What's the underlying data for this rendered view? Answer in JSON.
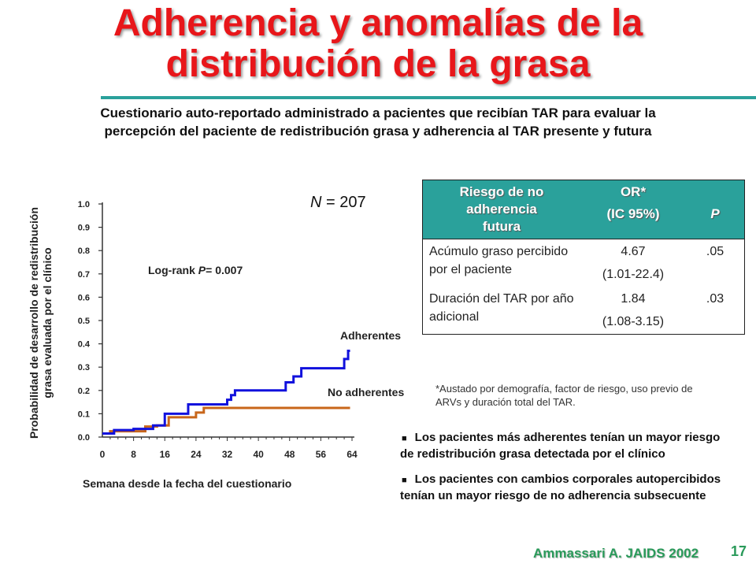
{
  "slide": {
    "title_line1": "Adherencia y anomalías de la",
    "title_line2": "distribución de la grasa",
    "subtitle": "Cuestionario auto-reportado administrado a pacientes que recibían TAR para evaluar la percepción del paciente de redistribución grasa y adherencia al TAR presente y futura",
    "n_label": "N",
    "n_value": "= 207",
    "citation": "Ammassari A. JAIDS 2002",
    "page_number": "17",
    "title_color": "#e8161a",
    "accent_color": "#2aa19b"
  },
  "chart_data": {
    "type": "line",
    "title": "",
    "xlabel": "Semana desde la fecha del cuestionario",
    "ylabel_line1": "Probabilidad de desarrollo de redistribución",
    "ylabel_line2": "grasa evaluada por el clínico",
    "xticks": [
      0,
      8,
      16,
      24,
      32,
      40,
      48,
      56,
      64
    ],
    "yticks": [
      "0.0",
      "0.1",
      "0.2",
      "0.3",
      "0.4",
      "0.5",
      "0.6",
      "0.7",
      "0.8",
      "0.9",
      "1.0"
    ],
    "xlim": [
      0,
      64
    ],
    "ylim": [
      0,
      1.0
    ],
    "step": true,
    "series": [
      {
        "name": "Adherentes",
        "color": "#1111dd",
        "x": [
          0,
          3,
          8,
          13,
          16,
          22,
          32,
          33,
          34,
          36,
          47,
          49,
          51,
          62,
          63,
          63.5
        ],
        "y": [
          0.015,
          0.03,
          0.035,
          0.05,
          0.1,
          0.14,
          0.16,
          0.18,
          0.2,
          0.2,
          0.235,
          0.26,
          0.295,
          0.335,
          0.37,
          0.37
        ]
      },
      {
        "name": "No adherentes",
        "color": "#c8661a",
        "x": [
          0,
          2,
          11,
          14,
          17,
          24,
          26,
          63.5
        ],
        "y": [
          0.015,
          0.025,
          0.045,
          0.05,
          0.085,
          0.105,
          0.125,
          0.125
        ]
      }
    ],
    "annotations": {
      "logrank_prefix": "Log-rank ",
      "logrank_p": "P",
      "logrank_value": "= 0.007"
    }
  },
  "table": {
    "headers": {
      "risk_line1": "Riesgo de no",
      "risk_line2": "adherencia",
      "risk_line3": "futura",
      "or_line1": "OR*",
      "or_line2": "(IC 95%)",
      "p": "P"
    },
    "rows": [
      {
        "label": "Acúmulo graso percibido por el paciente",
        "or": "4.67",
        "ci": "(1.01-22.4)",
        "p": ".05"
      },
      {
        "label": "Duración del TAR por año adicional",
        "or": "1.84",
        "ci": "(1.08-3.15)",
        "p": ".03"
      }
    ],
    "footnote": "*Austado por demografía, factor de riesgo, uso previo de ARVs y duración total del TAR."
  },
  "bullets": [
    "Los pacientes más adherentes tenían un mayor riesgo de redistribución grasa detectada por el clínico",
    "Los pacientes con cambios corporales autopercibidos tenían un mayor riesgo de no adherencia subsecuente"
  ]
}
